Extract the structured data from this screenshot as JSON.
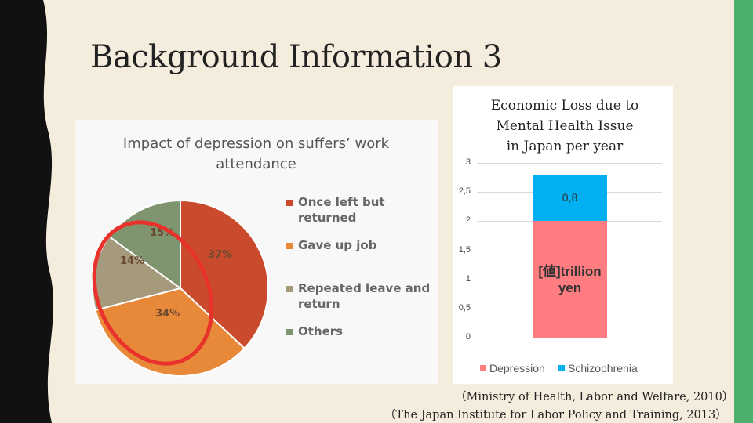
{
  "slide": {
    "title": "Background Information 3",
    "colors": {
      "background": "#f4ecdc",
      "left_strip": "#111111",
      "right_strip": "#4daf6e",
      "rule": "#7aa37a"
    }
  },
  "pie_chart": {
    "title_line1": "Impact of depression on suffers’ work",
    "title_line2": "attendance",
    "legend": [
      {
        "label_line1": "Once left but",
        "label_line2": "returned",
        "color": "#c94a2c"
      },
      {
        "label_line1": "Gave up job",
        "label_line2": "",
        "color": "#e8893a"
      },
      {
        "label_line1": "Repeated leave and",
        "label_line2": "return",
        "color": "#a59a7c"
      },
      {
        "label_line1": "Others",
        "label_line2": "",
        "color": "#7f9570"
      }
    ],
    "percent_labels": [
      "37%",
      "34%",
      "14%",
      "15%"
    ],
    "annotation": "red-ellipse-highlight"
  },
  "bar_chart": {
    "title_line1": "Economic Loss due to",
    "title_line2": "Mental Health Issue",
    "title_line3": "in Japan per year",
    "segment_labels": {
      "depression": "[値]trillion yen",
      "schizophrenia": "0,8"
    },
    "y_ticks": [
      "3",
      "2,5",
      "2",
      "1,5",
      "1",
      "0,5",
      "0"
    ],
    "legend": [
      {
        "label": "Depression",
        "color": "#ff7c80"
      },
      {
        "label": "Schizophrenia",
        "color": "#00b0f0"
      }
    ]
  },
  "chart_data": [
    {
      "type": "pie",
      "title": "Impact of depression on suffers’ work attendance",
      "categories": [
        "Once left but returned",
        "Gave up job",
        "Repeated leave and return",
        "Others"
      ],
      "values": [
        37,
        34,
        14,
        15
      ],
      "colors": [
        "#c94a2c",
        "#e8893a",
        "#a59a7c",
        "#7f9570"
      ],
      "legend_position": "right"
    },
    {
      "type": "bar",
      "stacked": true,
      "title": "Economic Loss due to Mental Health Issue in Japan per year",
      "categories": [
        ""
      ],
      "series": [
        {
          "name": "Depression",
          "values": [
            2.0
          ],
          "color": "#ff7c80"
        },
        {
          "name": "Schizophrenia",
          "values": [
            0.8
          ],
          "color": "#00b0f0"
        }
      ],
      "ylim": [
        0,
        3
      ],
      "grid": true,
      "legend_position": "bottom"
    }
  ],
  "sources": {
    "line1": "（Ministry of Health, Labor and Welfare, 2010）",
    "line2": "（The Japan Institute for Labor Policy and Training, 2013）"
  }
}
